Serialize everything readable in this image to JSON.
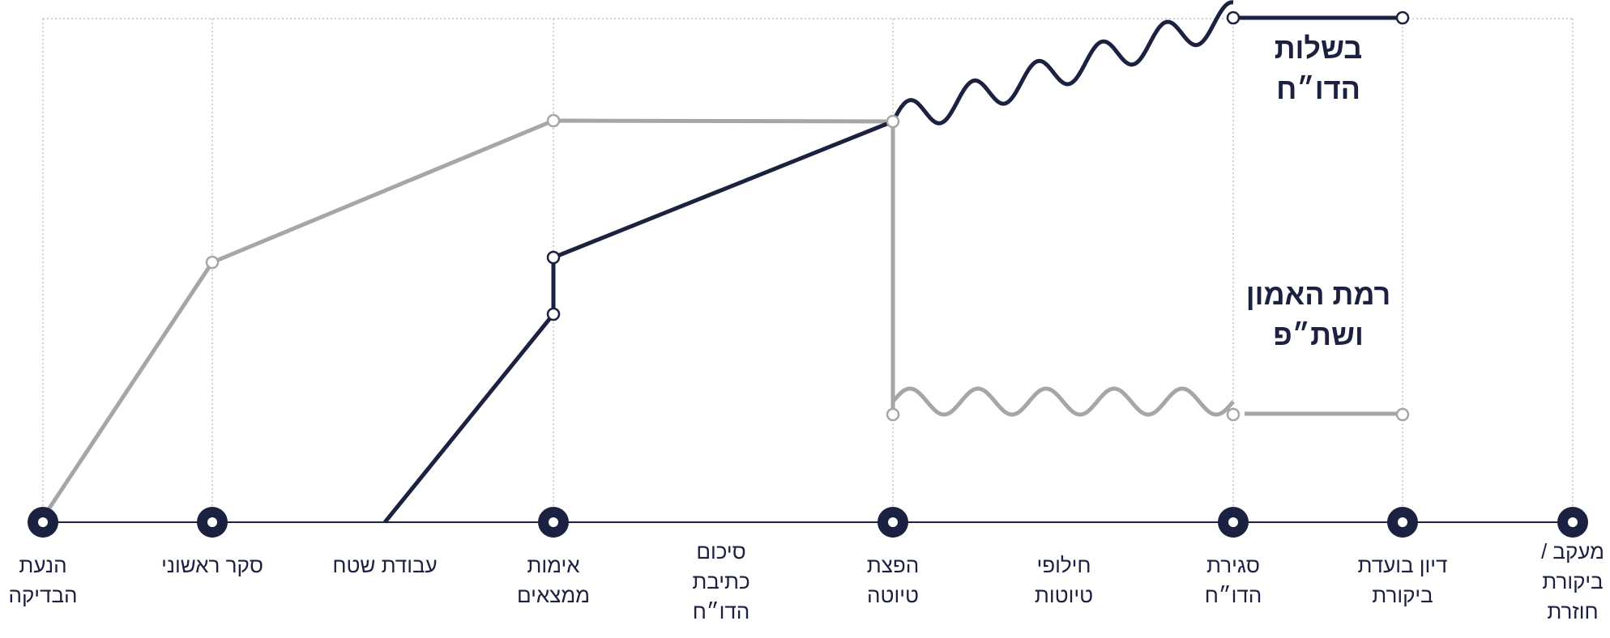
{
  "colors": {
    "navy": "#1b2140",
    "gray": "#a6a6a6",
    "grid": "#b3b3b3",
    "background": "#ffffff"
  },
  "stages": [
    {
      "id": "s1",
      "lines": [
        "הנעת",
        "הבדיקה"
      ],
      "marker": true
    },
    {
      "id": "s2",
      "lines": [
        "סקר ראשוני"
      ],
      "marker": true
    },
    {
      "id": "s3",
      "lines": [
        "עבודת שטח"
      ],
      "marker": false
    },
    {
      "id": "s4",
      "lines": [
        "אימות",
        "ממצאים"
      ],
      "marker": true
    },
    {
      "id": "s5",
      "lines": [
        "סיכום",
        "כתיבת",
        "הדו״ח"
      ],
      "marker": false
    },
    {
      "id": "s6",
      "lines": [
        "הפצת",
        "טיוטה"
      ],
      "marker": true
    },
    {
      "id": "s7",
      "lines": [
        "חילופי",
        "טיוטות"
      ],
      "marker": false
    },
    {
      "id": "s8",
      "lines": [
        "סגירת",
        "הדו״ח"
      ],
      "marker": true
    },
    {
      "id": "s9",
      "lines": [
        "דיון בועדת",
        "ביקורת"
      ],
      "marker": true
    },
    {
      "id": "s10",
      "lines": [
        "מעקב /",
        "ביקורת",
        "חוזרת"
      ],
      "marker": true
    }
  ],
  "series": {
    "maturity": {
      "lines": [
        "בשלות",
        "הדו״ח"
      ]
    },
    "trust": {
      "lines": [
        "רמת האמון",
        "ושת״פ"
      ]
    }
  }
}
